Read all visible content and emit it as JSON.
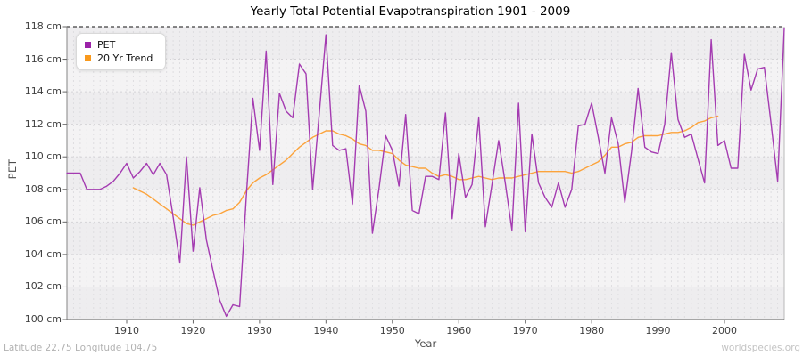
{
  "title": "Yearly Total Potential Evapotranspiration 1901 - 2009",
  "y_axis": {
    "label": "PET",
    "unit": "cm",
    "ticks": [
      {
        "value": 118,
        "label": "118 cm"
      },
      {
        "value": 116,
        "label": "116 cm"
      },
      {
        "value": 114,
        "label": "114 cm"
      },
      {
        "value": 112,
        "label": "112 cm"
      },
      {
        "value": 110,
        "label": "110 cm"
      },
      {
        "value": 108,
        "label": "108 cm"
      },
      {
        "value": 106,
        "label": "106 cm"
      },
      {
        "value": 104,
        "label": "104 cm"
      },
      {
        "value": 102,
        "label": "102 cm"
      },
      {
        "value": 100,
        "label": "100 cm"
      }
    ]
  },
  "x_axis": {
    "label": "Year",
    "ticks": [
      1910,
      1920,
      1930,
      1940,
      1950,
      1960,
      1970,
      1980,
      1990,
      2000
    ]
  },
  "legend": [
    {
      "label": "PET",
      "color": "#9b22a8"
    },
    {
      "label": "20 Yr Trend",
      "color": "#f9991c"
    }
  ],
  "footer": {
    "left": "Latitude 22.75 Longitude 104.75",
    "right": "worldspecies.org"
  },
  "chart_data": {
    "type": "line",
    "title": "Yearly Total Potential Evapotranspiration 1901 - 2009",
    "xlabel": "Year",
    "ylabel": "PET",
    "x_range": [
      1901,
      2009
    ],
    "ylim": [
      100,
      118
    ],
    "grid": true,
    "legend_position": "top-left",
    "series": [
      {
        "name": "PET",
        "color": "#a43bb1",
        "x_start": 1901,
        "values": [
          109.0,
          109.0,
          109.0,
          108.0,
          108.0,
          108.0,
          108.2,
          108.5,
          109.0,
          109.6,
          108.7,
          109.1,
          109.6,
          108.9,
          109.6,
          108.9,
          106.3,
          103.5,
          110.0,
          104.2,
          108.1,
          104.9,
          103.0,
          101.2,
          100.2,
          100.9,
          100.8,
          107.5,
          113.6,
          110.4,
          116.5,
          108.3,
          113.9,
          112.8,
          112.4,
          115.7,
          115.1,
          108.0,
          112.7,
          117.5,
          110.7,
          110.4,
          110.5,
          107.1,
          114.4,
          112.8,
          105.3,
          108.1,
          111.3,
          110.4,
          108.2,
          112.6,
          106.7,
          106.5,
          108.8,
          108.8,
          108.6,
          112.7,
          106.2,
          110.2,
          107.5,
          108.3,
          112.4,
          105.7,
          108.3,
          111.0,
          108.4,
          105.5,
          113.3,
          105.4,
          111.4,
          108.4,
          107.5,
          106.9,
          108.4,
          106.9,
          108.0,
          111.9,
          112.0,
          113.3,
          111.2,
          109.0,
          112.4,
          110.8,
          107.2,
          110.3,
          114.2,
          110.6,
          110.3,
          110.2,
          112.0,
          116.4,
          112.3,
          111.2,
          111.4,
          109.9,
          108.4,
          117.2,
          110.7,
          111.0,
          109.3,
          109.3,
          116.3,
          114.1,
          115.4,
          115.5,
          112.1,
          108.5,
          117.9
        ]
      },
      {
        "name": "20 Yr Trend",
        "color": "#fca33b",
        "x_start": 1911,
        "values": [
          108.1,
          107.9,
          107.7,
          107.4,
          107.1,
          106.8,
          106.5,
          106.2,
          105.9,
          105.8,
          106.0,
          106.2,
          106.4,
          106.5,
          106.7,
          106.8,
          107.2,
          107.9,
          108.4,
          108.7,
          108.9,
          109.2,
          109.5,
          109.8,
          110.2,
          110.6,
          110.9,
          111.2,
          111.4,
          111.6,
          111.6,
          111.4,
          111.3,
          111.1,
          110.8,
          110.7,
          110.4,
          110.4,
          110.3,
          110.2,
          109.8,
          109.5,
          109.4,
          109.3,
          109.3,
          109.0,
          108.8,
          108.9,
          108.8,
          108.6,
          108.6,
          108.7,
          108.8,
          108.7,
          108.6,
          108.7,
          108.7,
          108.7,
          108.8,
          108.9,
          109.0,
          109.1,
          109.1,
          109.1,
          109.1,
          109.1,
          109.0,
          109.1,
          109.3,
          109.5,
          109.7,
          110.1,
          110.6,
          110.6,
          110.8,
          110.9,
          111.2,
          111.3,
          111.3,
          111.3,
          111.4,
          111.5,
          111.5,
          111.6,
          111.8,
          112.1,
          112.2,
          112.4,
          112.5
        ]
      }
    ]
  }
}
